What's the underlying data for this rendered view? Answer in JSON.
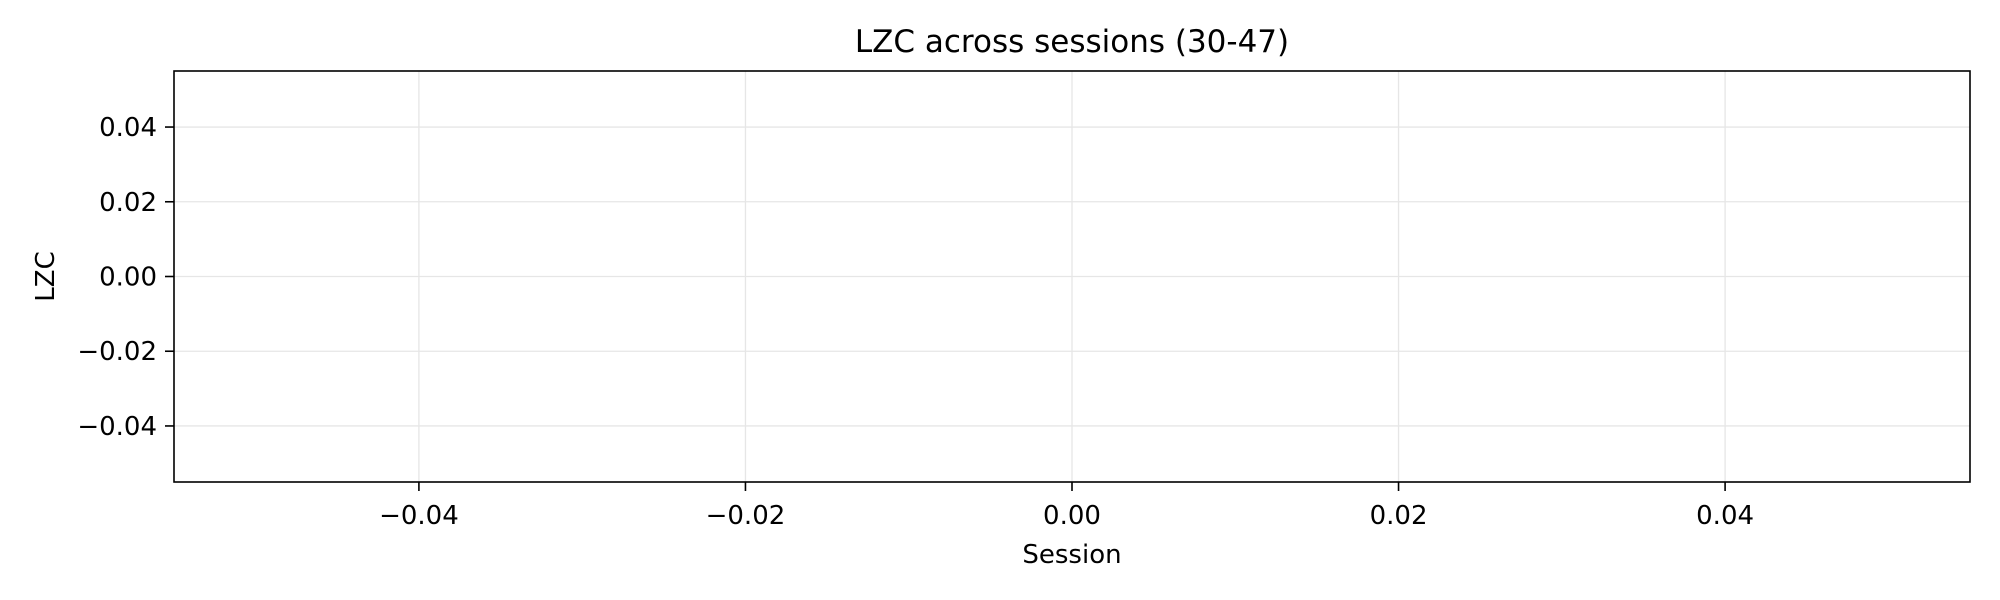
{
  "chart_data": {
    "type": "line",
    "title": "LZC across sessions (30-47)",
    "xlabel": "Session",
    "ylabel": "LZC",
    "x": [],
    "series": [],
    "xlim": [
      -0.055,
      0.055
    ],
    "ylim": [
      -0.055,
      0.055
    ],
    "xticks": [
      -0.04,
      -0.02,
      0.0,
      0.02,
      0.04
    ],
    "yticks": [
      -0.04,
      -0.02,
      0.0,
      0.02,
      0.04
    ],
    "xtick_labels": [
      "−0.04",
      "−0.02",
      "0.00",
      "0.02",
      "0.04"
    ],
    "ytick_labels": [
      "−0.04",
      "−0.02",
      "0.00",
      "0.02",
      "0.04"
    ],
    "grid": true,
    "legend": "none",
    "colors": {
      "grid": "#e6e6e6",
      "axes": "#000000",
      "background": "#ffffff"
    }
  }
}
